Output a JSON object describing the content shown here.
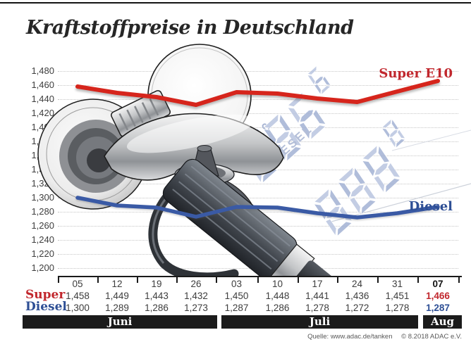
{
  "header": {
    "title": "Kraftstoffpreise in Deutschland"
  },
  "chart_data": {
    "type": "line",
    "categories": [
      "05",
      "12",
      "19",
      "26",
      "03",
      "10",
      "17",
      "24",
      "31",
      "07"
    ],
    "month_groups": [
      {
        "label": "Juni",
        "span": 4
      },
      {
        "label": "Juli",
        "span": 5
      },
      {
        "label": "Aug",
        "span": 1
      }
    ],
    "series": [
      {
        "name": "Super",
        "legend": "Super E10",
        "line_color": "#d6251c",
        "text_color": "#c1272d",
        "values": [
          1.458,
          1.449,
          1.443,
          1.432,
          1.45,
          1.448,
          1.441,
          1.436,
          1.451,
          1.466
        ],
        "labels": [
          "1,458",
          "1,449",
          "1,443",
          "1,432",
          "1,450",
          "1,448",
          "1,441",
          "1,436",
          "1,451",
          "1,466"
        ]
      },
      {
        "name": "Diesel",
        "legend": "Diesel",
        "line_color": "#3a5aa5",
        "text_color": "#2e4f95",
        "values": [
          1.3,
          1.289,
          1.286,
          1.273,
          1.287,
          1.286,
          1.278,
          1.272,
          1.278,
          1.287
        ],
        "labels": [
          "1,300",
          "1,289",
          "1,286",
          "1,273",
          "1,287",
          "1,286",
          "1,278",
          "1,272",
          "1,278",
          "1,287"
        ]
      }
    ],
    "ylim": [
      1.2,
      1.48
    ],
    "ytick_step": 0.02,
    "ytick_labels": [
      "1,480",
      "1,460",
      "1,440",
      "1,420",
      "1,400",
      "1,380",
      "1,360",
      "1,340",
      "1,320",
      "1,300",
      "1,280",
      "1,260",
      "1,240",
      "1,220",
      "1,200"
    ],
    "grid": "horizontal-dotted",
    "legend_position": "right-on-chart"
  },
  "watermark": {
    "label_super": "SUPER E10",
    "digits_super": "886",
    "digits_super_small": "6",
    "label_diesel": "DIESEL",
    "digits_diesel": "888",
    "digits_diesel_small": "8"
  },
  "footer": {
    "source": "Quelle: www.adac.de/tanken",
    "copyright": "© 8.2018  ADAC e.V."
  },
  "colors": {
    "accent_red": "#d6251c",
    "accent_blue": "#3a5aa5",
    "bar_black": "#1b1b1b",
    "watermark_blue": "#aab9d8"
  }
}
